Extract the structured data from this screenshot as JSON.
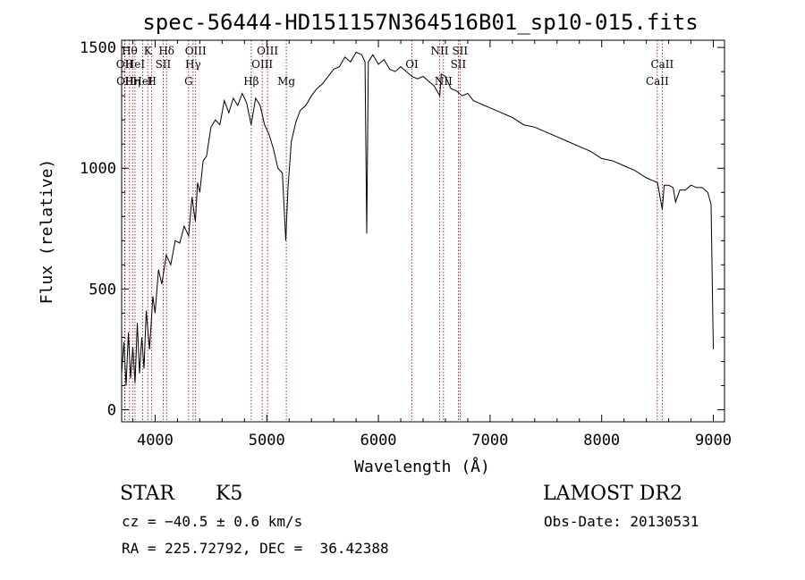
{
  "chart_data": {
    "type": "line",
    "title": "spec-56444-HD151157N364516B01_sp10-015.fits",
    "xlabel": "Wavelength (Å)",
    "ylabel": "Flux (relative)",
    "xlim": [
      3700,
      9100
    ],
    "ylim": [
      -50,
      1530
    ],
    "x_ticks": [
      4000,
      5000,
      6000,
      7000,
      8000,
      9000
    ],
    "y_ticks": [
      0,
      500,
      1000,
      1500
    ],
    "grid": false,
    "legend": "none",
    "line_color": "#000000",
    "marker_color": "#8b0000",
    "series": [
      {
        "x": [
          3700,
          3720,
          3740,
          3760,
          3780,
          3800,
          3820,
          3840,
          3860,
          3880,
          3900,
          3920,
          3950,
          3980,
          4000,
          4030,
          4060,
          4100,
          4140,
          4180,
          4220,
          4260,
          4300,
          4330,
          4360,
          4380,
          4400,
          4430,
          4460,
          4500,
          4540,
          4580,
          4620,
          4660,
          4700,
          4740,
          4780,
          4820,
          4860,
          4900,
          4940,
          4980,
          5020,
          5060,
          5100,
          5140,
          5170,
          5190,
          5220,
          5260,
          5300,
          5350,
          5400,
          5450,
          5500,
          5550,
          5600,
          5650,
          5700,
          5750,
          5800,
          5850,
          5880,
          5895,
          5910,
          5950,
          6000,
          6050,
          6100,
          6150,
          6200,
          6250,
          6300,
          6350,
          6400,
          6450,
          6500,
          6550,
          6563,
          6600,
          6650,
          6700,
          6750,
          6800,
          6850,
          6900,
          6950,
          7000,
          7100,
          7200,
          7300,
          7400,
          7500,
          7600,
          7700,
          7800,
          7900,
          8000,
          8100,
          8200,
          8300,
          8400,
          8450,
          8500,
          8542,
          8560,
          8600,
          8640,
          8662,
          8700,
          8750,
          8800,
          8850,
          8900,
          8950,
          8980,
          9000
        ],
        "y": [
          150,
          280,
          100,
          320,
          130,
          260,
          110,
          360,
          150,
          300,
          170,
          410,
          250,
          470,
          400,
          580,
          520,
          640,
          600,
          700,
          690,
          760,
          720,
          880,
          780,
          940,
          900,
          1030,
          1050,
          1170,
          1200,
          1180,
          1280,
          1230,
          1290,
          1260,
          1310,
          1270,
          1180,
          1290,
          1260,
          1180,
          1140,
          1080,
          1000,
          980,
          700,
          920,
          1110,
          1190,
          1240,
          1260,
          1300,
          1330,
          1350,
          1380,
          1410,
          1420,
          1460,
          1440,
          1480,
          1470,
          1440,
          730,
          1440,
          1470,
          1430,
          1450,
          1410,
          1400,
          1420,
          1400,
          1380,
          1370,
          1380,
          1360,
          1340,
          1300,
          1390,
          1380,
          1330,
          1320,
          1300,
          1310,
          1280,
          1270,
          1260,
          1250,
          1230,
          1210,
          1180,
          1170,
          1150,
          1130,
          1110,
          1090,
          1070,
          1040,
          1030,
          1010,
          990,
          960,
          950,
          940,
          830,
          930,
          930,
          920,
          860,
          910,
          910,
          930,
          920,
          920,
          900,
          850,
          250
        ]
      }
    ],
    "line_markers": [
      {
        "wave": 3727,
        "label": "OII",
        "row": 2
      },
      {
        "wave": 3730,
        "label": "OII",
        "row": 3
      },
      {
        "wave": 3771,
        "label": "Hθ",
        "row": 1
      },
      {
        "wave": 3798,
        "label": "Hη",
        "row": 3
      },
      {
        "wave": 3820,
        "label": "HeI",
        "row": 2
      },
      {
        "wave": 3889,
        "label": "HeI",
        "row": 3
      },
      {
        "wave": 3934,
        "label": "K",
        "row": 1
      },
      {
        "wave": 3970,
        "label": "H",
        "row": 3
      },
      {
        "wave": 4072,
        "label": "SII",
        "row": 2
      },
      {
        "wave": 4102,
        "label": "Hδ",
        "row": 1
      },
      {
        "wave": 4300,
        "label": "G",
        "row": 3
      },
      {
        "wave": 4340,
        "label": "Hγ",
        "row": 2
      },
      {
        "wave": 4363,
        "label": "OIII",
        "row": 1
      },
      {
        "wave": 4861,
        "label": "Hβ",
        "row": 3
      },
      {
        "wave": 4959,
        "label": "OIII",
        "row": 2
      },
      {
        "wave": 5007,
        "label": "OIII",
        "row": 1
      },
      {
        "wave": 5175,
        "label": "Mg",
        "row": 3
      },
      {
        "wave": 6300,
        "label": "OI",
        "row": 2
      },
      {
        "wave": 6548,
        "label": "NII",
        "row": 1
      },
      {
        "wave": 6583,
        "label": "NII",
        "row": 3
      },
      {
        "wave": 6716,
        "label": "SII",
        "row": 2
      },
      {
        "wave": 6731,
        "label": "SII",
        "row": 1
      },
      {
        "wave": 8498,
        "label": "CaII",
        "row": 3
      },
      {
        "wave": 8542,
        "label": "CaII",
        "row": 2
      }
    ]
  },
  "info": {
    "class": "STAR",
    "subclass": "K5",
    "survey": "LAMOST DR2",
    "cz": "cz = −40.5 ± 0.6 km/s",
    "obs_date": "Obs-Date: 20130531",
    "coords": "RA = 225.72792, DEC =  36.42388"
  }
}
